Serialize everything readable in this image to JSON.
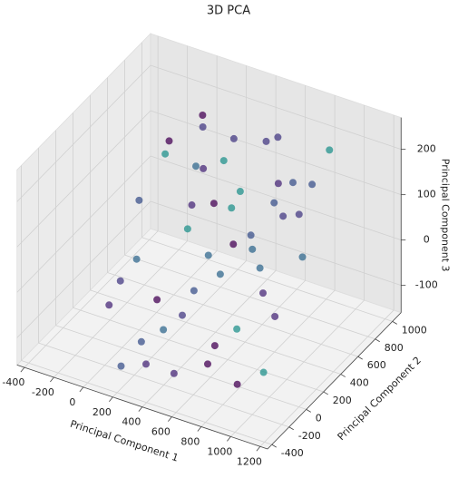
{
  "chart_data": {
    "type": "scatter3d",
    "title": "3D PCA",
    "xlabel": "Principal Component 1",
    "ylabel": "Principal Component 2",
    "zlabel": "Principal Component 3",
    "xlim": [
      -450,
      1250
    ],
    "ylim": [
      -450,
      1100
    ],
    "zlim": [
      -160,
      270
    ],
    "xticks": [
      -400,
      -200,
      0,
      200,
      400,
      600,
      800,
      1000,
      1200
    ],
    "yticks": [
      -400,
      -200,
      0,
      200,
      400,
      600,
      800,
      1000
    ],
    "zticks": [
      -100,
      0,
      100,
      200
    ],
    "grid": true,
    "x": [
      -90,
      -60,
      -30,
      0,
      40,
      80,
      120,
      160,
      200,
      240,
      280,
      320,
      360,
      400,
      440,
      480,
      520,
      560,
      600,
      640,
      680,
      720,
      760,
      800,
      840,
      880,
      920,
      960,
      990,
      -70,
      20,
      110,
      210,
      310,
      410,
      510,
      610,
      710,
      810,
      910,
      150,
      350,
      550,
      750,
      250,
      450,
      650,
      850
    ],
    "y": [
      700,
      300,
      -100,
      500,
      100,
      800,
      200,
      -50,
      600,
      350,
      0,
      750,
      450,
      150,
      -150,
      550,
      250,
      850,
      50,
      400,
      650,
      100,
      300,
      500,
      -100,
      700,
      200,
      0,
      400,
      100,
      900,
      -200,
      450,
      650,
      300,
      800,
      -50,
      550,
      250,
      850,
      600,
      100,
      350,
      700,
      -150,
      500,
      400,
      600
    ],
    "z": [
      150,
      100,
      -50,
      170,
      20,
      180,
      -80,
      -120,
      140,
      60,
      -90,
      190,
      110,
      -20,
      -140,
      130,
      10,
      200,
      -100,
      80,
      150,
      -60,
      40,
      120,
      -130,
      160,
      -30,
      -110,
      70,
      -40,
      180,
      -150,
      90,
      160,
      30,
      195,
      -120,
      130,
      0,
      210,
      140,
      -70,
      60,
      150,
      -140,
      100,
      50,
      110
    ],
    "colors": [
      "#440154",
      "#3b528b",
      "#482878",
      "#21918c",
      "#31688e",
      "#443983",
      "#440154",
      "#3b528b",
      "#482878",
      "#21918c",
      "#31688e",
      "#443983",
      "#440154",
      "#3b528b",
      "#482878",
      "#21918c",
      "#31688e",
      "#443983",
      "#440154",
      "#3b528b",
      "#482878",
      "#21918c",
      "#31688e",
      "#443983",
      "#440154",
      "#3b528b",
      "#482878",
      "#21918c",
      "#31688e",
      "#443983",
      "#440154",
      "#3b528b",
      "#482878",
      "#21918c",
      "#31688e",
      "#443983",
      "#440154",
      "#3b528b",
      "#482878",
      "#21918c",
      "#31688e",
      "#443983",
      "#440154",
      "#3b528b",
      "#482878",
      "#21918c",
      "#31688e",
      "#443983"
    ]
  }
}
